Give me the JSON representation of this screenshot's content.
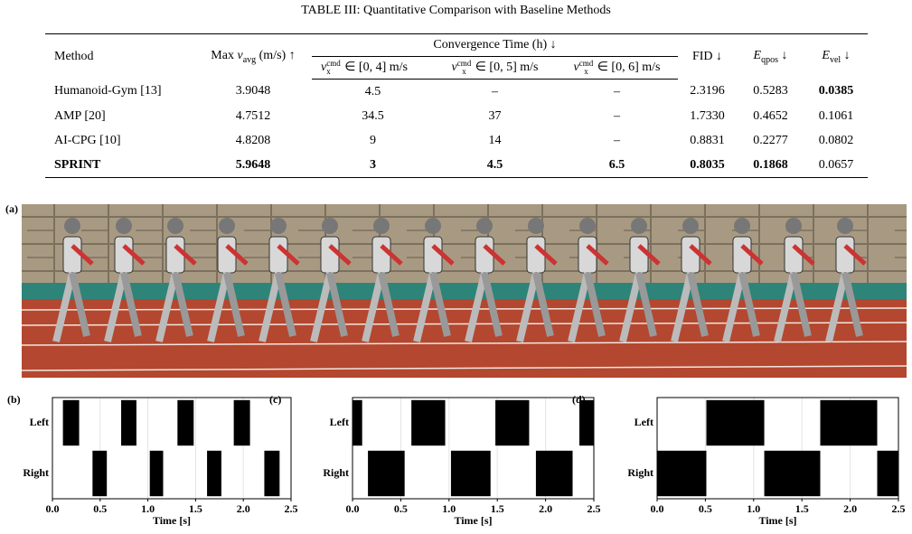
{
  "table": {
    "caption": "TABLE III: Quantitative Comparison with Baseline Methods",
    "header": {
      "method": "Method",
      "max_v": [
        "Max ",
        "v",
        "avg",
        " (m/s) ↑"
      ],
      "convergence": "Convergence Time (h) ↓",
      "ranges": [
        [
          "v",
          "cmd",
          "x",
          " ∈ [0, 4] m/s"
        ],
        [
          "v",
          "cmd",
          "x",
          " ∈ [0, 5] m/s"
        ],
        [
          "v",
          "cmd",
          "x",
          " ∈ [0, 6] m/s"
        ]
      ],
      "fid": "FID ↓",
      "e_qpos": [
        "E",
        "qpos",
        " ↓"
      ],
      "e_vel": [
        "E",
        "vel",
        " ↓"
      ]
    },
    "rows": [
      [
        "Humanoid-Gym [13]",
        "3.9048",
        "4.5",
        "–",
        "–",
        "2.3196",
        "0.5283",
        "0.0385"
      ],
      [
        "AMP [20]",
        "4.7512",
        "34.5",
        "37",
        "–",
        "1.7330",
        "0.4652",
        "0.1061"
      ],
      [
        "AI-CPG [10]",
        "4.8208",
        "9",
        "14",
        "–",
        "0.8831",
        "0.2277",
        "0.0802"
      ],
      [
        "SPRINT",
        "5.9648",
        "3",
        "4.5",
        "6.5",
        "0.8035",
        "0.1868",
        "0.0657"
      ]
    ]
  },
  "photo": {
    "label": "(a)"
  },
  "chart_data": [
    {
      "type": "timeline",
      "panel_label": "(b)",
      "x_label": "Time [s]",
      "categories": [
        "Left",
        "Right"
      ],
      "intervals": [
        [
          [
            0.11,
            0.28
          ],
          [
            0.72,
            0.88
          ],
          [
            1.31,
            1.48
          ],
          [
            1.9,
            2.07
          ]
        ],
        [
          [
            0.42,
            0.57
          ],
          [
            1.02,
            1.16
          ],
          [
            1.62,
            1.77
          ],
          [
            2.22,
            2.38
          ]
        ]
      ],
      "color": "#000000",
      "xlim": [
        0,
        2.5
      ],
      "xticks": [
        {
          "value": 0,
          "label": "0.0"
        },
        0.5,
        {
          "value": 1,
          "label": "1.0"
        },
        1.5,
        {
          "value": 2,
          "label": "2.0"
        },
        2.5
      ],
      "grid": true
    },
    {
      "type": "timeline",
      "panel_label": "(c)",
      "x_label": "Time [s]",
      "categories": [
        "Left",
        "Right"
      ],
      "intervals": [
        [
          [
            0,
            0.1
          ],
          [
            0.61,
            0.96
          ],
          [
            1.48,
            1.83
          ],
          [
            2.35,
            2.5
          ]
        ],
        [
          [
            0.16,
            0.54
          ],
          [
            1.02,
            1.43
          ],
          [
            1.9,
            2.28
          ]
        ]
      ],
      "color": "#000000",
      "xlim": [
        0,
        2.5
      ],
      "xticks": [
        {
          "value": 0,
          "label": "0.0"
        },
        0.5,
        {
          "value": 1,
          "label": "1.0"
        },
        1.5,
        {
          "value": 2,
          "label": "2.0"
        },
        2.5
      ],
      "grid": true
    },
    {
      "type": "timeline",
      "panel_label": "(d)",
      "x_label": "Time [s]",
      "categories": [
        "Left",
        "Right"
      ],
      "intervals": [
        [
          [
            0.51,
            1.11
          ],
          [
            1.69,
            2.28
          ]
        ],
        [
          [
            0,
            0.51
          ],
          [
            1.11,
            1.69
          ],
          [
            2.28,
            2.5
          ]
        ]
      ],
      "color": "#000000",
      "xlim": [
        0,
        2.5
      ],
      "xticks": [
        {
          "value": 0,
          "label": "0.0"
        },
        0.5,
        {
          "value": 1,
          "label": "1.0"
        },
        1.5,
        {
          "value": 2,
          "label": "2.0"
        },
        2.5
      ],
      "grid": true
    }
  ]
}
